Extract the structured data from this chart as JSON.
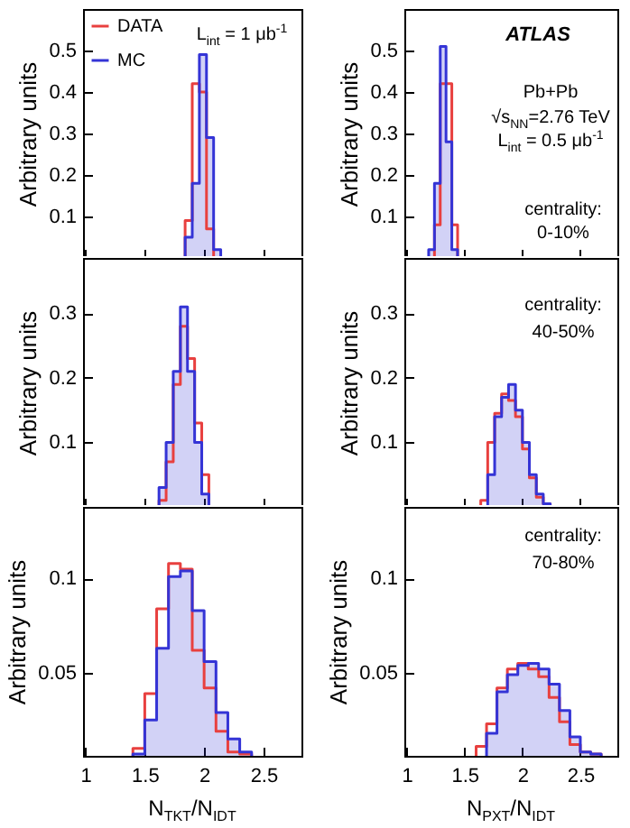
{
  "chart_data": [
    {
      "type": "histogram",
      "ylabel": "Arbitrary units",
      "bins": [
        1.84,
        1.9,
        1.96,
        2.02,
        2.08,
        2.14
      ],
      "xlim": [
        0.98,
        2.82
      ],
      "xticks": [
        1,
        1.5,
        2,
        2.5
      ],
      "ylim": [
        0,
        0.6
      ],
      "yticks": [
        0.1,
        0.2,
        0.3,
        0.4,
        0.5
      ],
      "tick_labels": "y",
      "legend": "top left",
      "annotations": [
        "L$_{int}$ = 1 μb$^{-1}$"
      ],
      "series": [
        {
          "name": "DATA",
          "color": "#e8403f",
          "bins": [
            1.84,
            1.9,
            1.96,
            2.02,
            2.08
          ],
          "values": [
            0.09,
            0.42,
            0.4,
            0.07
          ]
        },
        {
          "name": "MC",
          "color": "#3434d6",
          "values": [
            0.05,
            0.18,
            0.49,
            0.29,
            0.02
          ]
        }
      ]
    },
    {
      "type": "histogram",
      "ylabel": "Arbitrary units",
      "bins": [
        1.19,
        1.24,
        1.29,
        1.34,
        1.39,
        1.44
      ],
      "xlim": [
        0.98,
        2.82
      ],
      "xticks": [
        1,
        1.5,
        2,
        2.5
      ],
      "ylim": [
        0,
        0.6
      ],
      "yticks": [
        0.1,
        0.2,
        0.3,
        0.4,
        0.5
      ],
      "tick_labels": "y",
      "annotations": [
        "ATLAS",
        "Pb+Pb",
        "√s$_{NN}$=2.76 TeV",
        "L$_{int}$ = 0.5 μb$^{-1}$",
        "centrality:",
        "0-10%"
      ],
      "series": [
        {
          "color": "#e8403f",
          "bins": [
            1.24,
            1.29,
            1.34,
            1.39,
            1.44
          ],
          "values": [
            0.08,
            0.42,
            0.42,
            0.08
          ]
        },
        {
          "color": "#3434d6",
          "values": [
            0.02,
            0.18,
            0.51,
            0.28,
            0.02
          ]
        }
      ]
    },
    {
      "type": "histogram",
      "ylabel": "Arbitrary units",
      "bins": [
        1.62,
        1.68,
        1.74,
        1.8,
        1.86,
        1.92,
        1.98,
        2.04
      ],
      "xlim": [
        0.98,
        2.82
      ],
      "xticks": [
        1,
        1.5,
        2,
        2.5
      ],
      "ylim": [
        0,
        0.386
      ],
      "yticks": [
        0.1,
        0.2,
        0.3
      ],
      "tick_labels": "y",
      "series": [
        {
          "color": "#e8403f",
          "values": [
            0.01,
            0.07,
            0.19,
            0.28,
            0.23,
            0.13,
            0.05
          ]
        },
        {
          "color": "#3434d6",
          "values": [
            0.03,
            0.1,
            0.21,
            0.31,
            0.21,
            0.1,
            0.02
          ]
        }
      ]
    },
    {
      "type": "histogram",
      "ylabel": "Arbitrary units",
      "bins": [
        1.64,
        1.7,
        1.76,
        1.82,
        1.88,
        1.94,
        2.0,
        2.06,
        2.12,
        2.18,
        2.24
      ],
      "xlim": [
        0.98,
        2.82
      ],
      "xticks": [
        1,
        1.5,
        2,
        2.5
      ],
      "ylim": [
        0,
        0.386
      ],
      "yticks": [
        0.1,
        0.2,
        0.3
      ],
      "tick_labels": "y",
      "annotations": [
        "centrality:",
        "40-50%"
      ],
      "series": [
        {
          "color": "#e8403f",
          "values": [
            0.01,
            0.1,
            0.145,
            0.175,
            0.165,
            0.14,
            0.09,
            0.045,
            0.015,
            0.005
          ]
        },
        {
          "color": "#3434d6",
          "values": [
            0,
            0.05,
            0.14,
            0.17,
            0.19,
            0.15,
            0.1,
            0.05,
            0.02,
            0.005
          ]
        }
      ]
    },
    {
      "type": "histogram",
      "ylabel": "Arbitrary units",
      "xlabel": "N$_{TKT}$/N$_{IDT}$",
      "bins": [
        1.4,
        1.5,
        1.6,
        1.7,
        1.8,
        1.9,
        2.0,
        2.1,
        2.2,
        2.3,
        2.4
      ],
      "xlim": [
        0.98,
        2.82
      ],
      "xticks": [
        1,
        1.5,
        2,
        2.5
      ],
      "ylim": [
        0.006,
        0.138
      ],
      "yticks": [
        0.05,
        0.1
      ],
      "series": [
        {
          "color": "#e8403f",
          "values": [
            0.01,
            0.039,
            0.084,
            0.108,
            0.105,
            0.062,
            0.042,
            0.019,
            0.008,
            0.007
          ]
        },
        {
          "color": "#3434d6",
          "values": [
            0.007,
            0.025,
            0.063,
            0.101,
            0.104,
            0.083,
            0.056,
            0.029,
            0.015,
            0.008
          ]
        }
      ]
    },
    {
      "type": "histogram",
      "ylabel": "Arbitrary units",
      "xlabel": "N$_{PXT}$/N$_{IDT}$",
      "bins": [
        1.6,
        1.69,
        1.78,
        1.87,
        1.96,
        2.05,
        2.14,
        2.23,
        2.32,
        2.41,
        2.5,
        2.59,
        2.68
      ],
      "xlim": [
        0.98,
        2.82
      ],
      "xticks": [
        1,
        1.5,
        2,
        2.5
      ],
      "ylim": [
        0.006,
        0.138
      ],
      "yticks": [
        0.05,
        0.1
      ],
      "annotations": [
        "centrality:",
        "70-80%"
      ],
      "series": [
        {
          "color": "#e8403f",
          "values": [
            0.011,
            0.023,
            0.042,
            0.052,
            0.055,
            0.052,
            0.048,
            0.037,
            0.024,
            0.012,
            0.008,
            0.007
          ]
        },
        {
          "color": "#3434d6",
          "bins": [
            1.69,
            1.78,
            1.87,
            1.96,
            2.05,
            2.14,
            2.23,
            2.32,
            2.41,
            2.5,
            2.59,
            2.68
          ],
          "values": [
            0.018,
            0.04,
            0.049,
            0.054,
            0.055,
            0.052,
            0.044,
            0.03,
            0.016,
            0.008,
            0.007
          ]
        }
      ]
    }
  ]
}
